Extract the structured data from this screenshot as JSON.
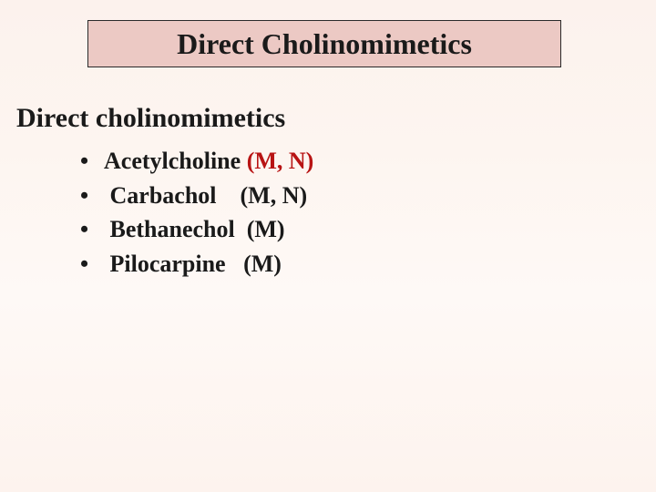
{
  "colors": {
    "background_gradient_top": "#fcf2ed",
    "background_gradient_bottom": "#fdf3ee",
    "title_box_fill": "#ecc9c4",
    "title_box_border": "#2a2a2a",
    "text_color": "#1a1a1a",
    "receptor_red": "#b81414"
  },
  "typography": {
    "font_family": "Times New Roman",
    "title_fontsize": 32,
    "subtitle_fontsize": 30,
    "list_fontsize": 26,
    "title_weight": "bold",
    "list_weight": "bold"
  },
  "title": "Direct Cholinomimetics",
  "subtitle": "Direct cholinomimetics",
  "bullet_char": "•",
  "items": [
    {
      "drug": "Acetylcholine ",
      "receptor": "(M, N)",
      "receptor_color": "red"
    },
    {
      "drug": " Carbachol    ",
      "receptor": "(M, N)",
      "receptor_color": "black"
    },
    {
      "drug": " Bethanechol  ",
      "receptor": "(M)",
      "receptor_color": "black"
    },
    {
      "drug": " Pilocarpine   ",
      "receptor": "(M)",
      "receptor_color": "black"
    }
  ]
}
